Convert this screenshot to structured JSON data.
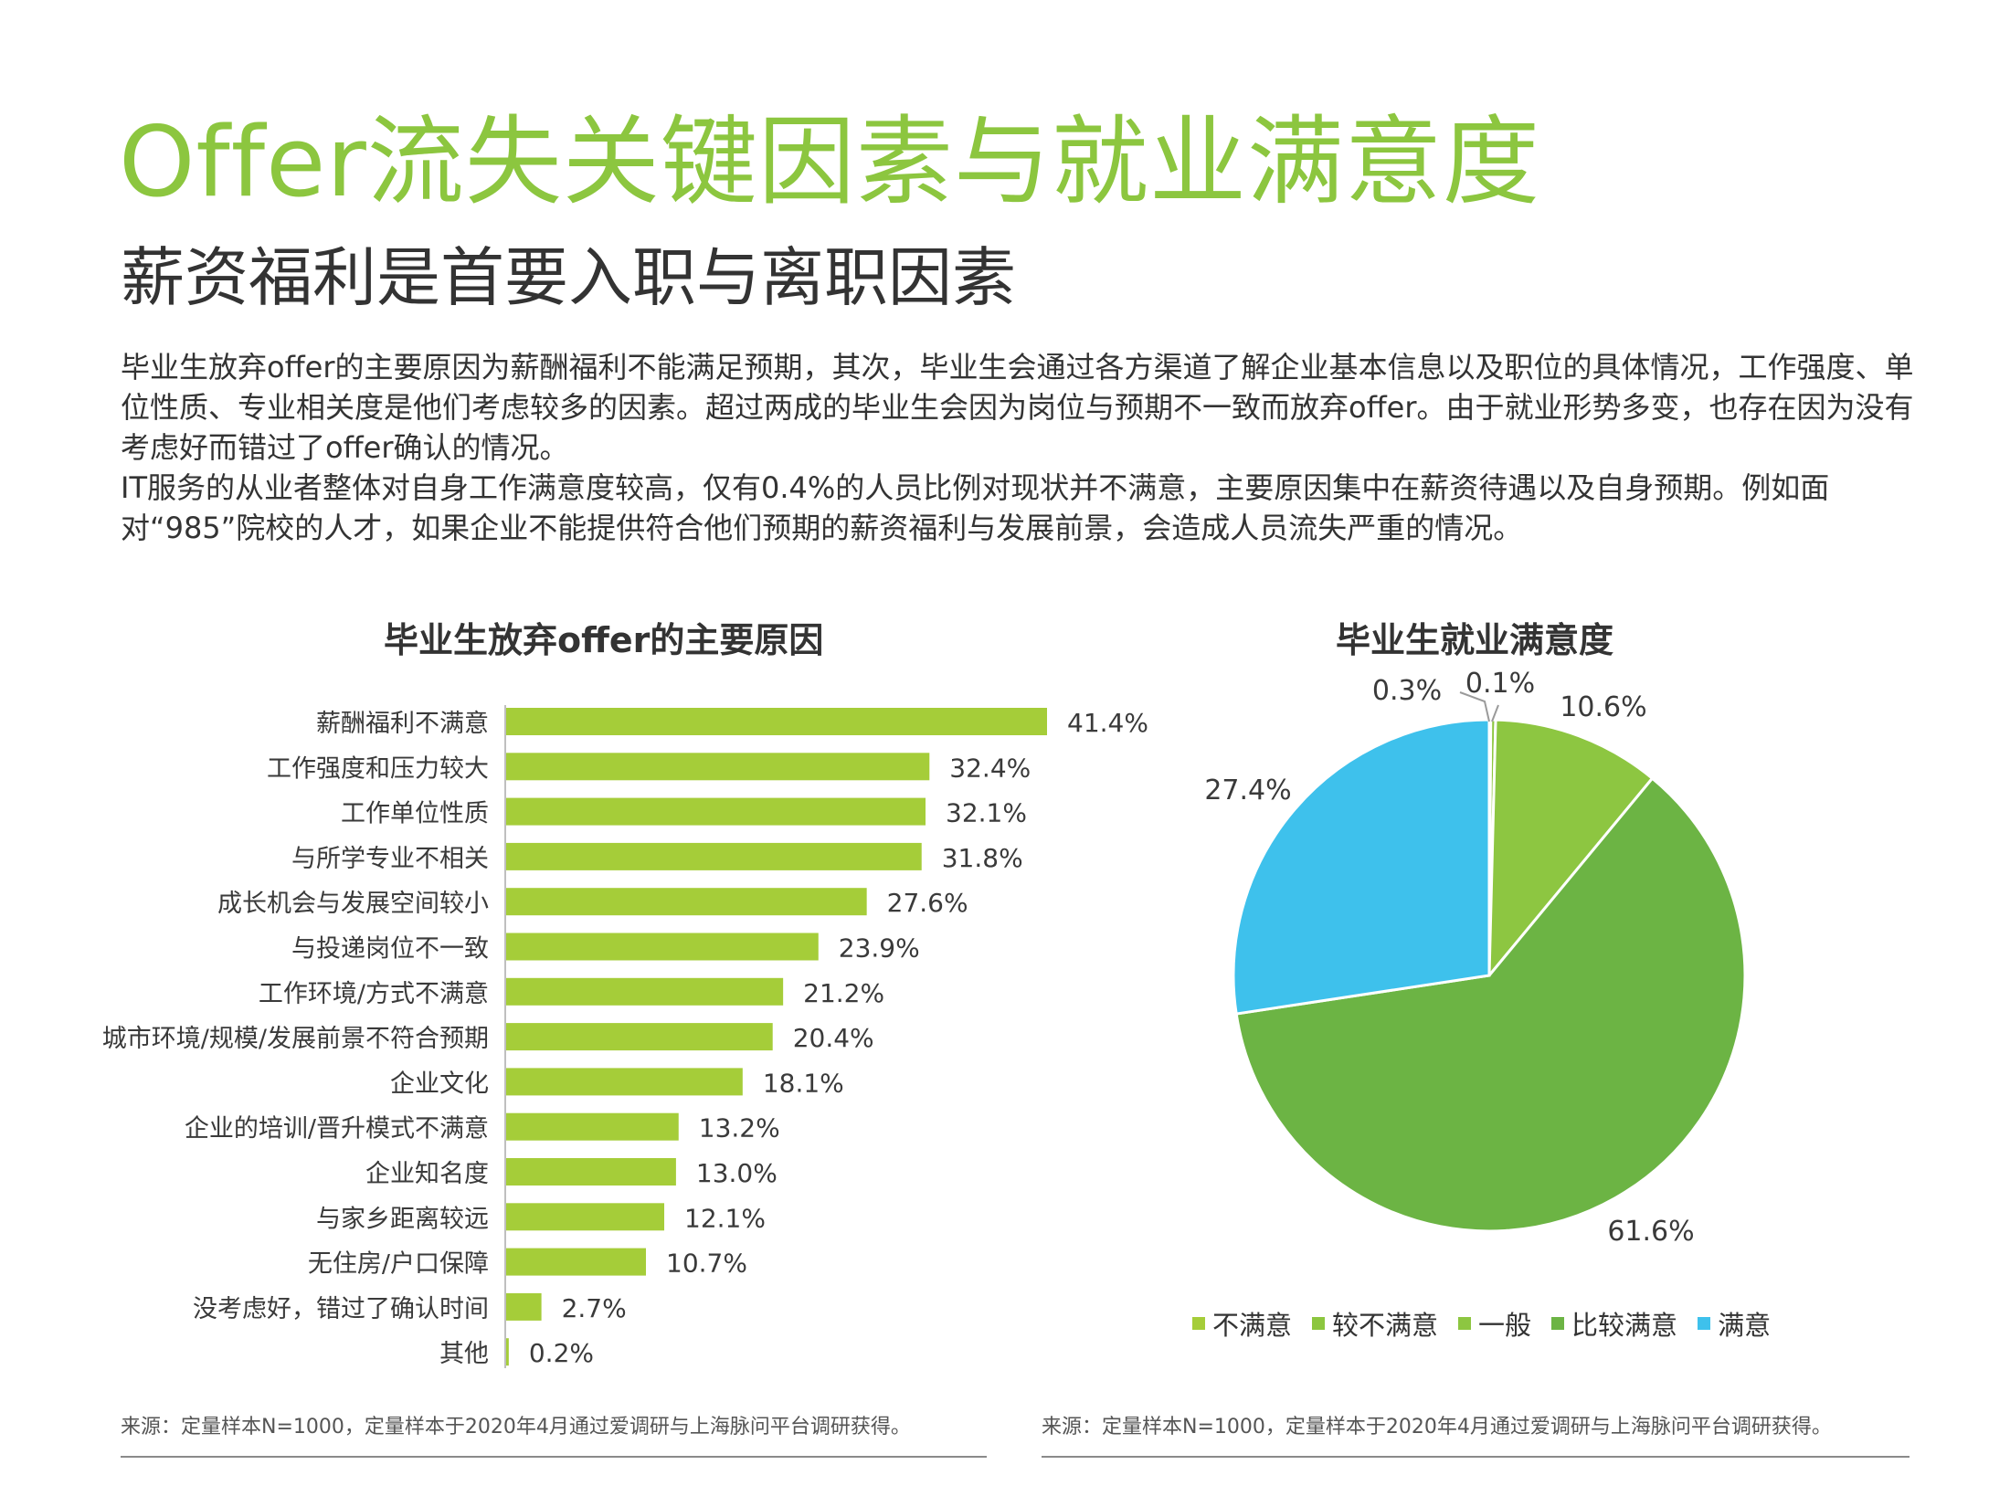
{
  "header": {
    "title": "Offer流失关键因素与就业满意度",
    "subtitle": "薪资福利是首要入职与离职因素"
  },
  "body": {
    "paragraphs": [
      "毕业生放弃offer的主要原因为薪酬福利不能满足预期，其次，毕业生会通过各方渠道了解企业基本信息以及职位的具体情况，工作强度、单位性质、专业相关度是他们考虑较多的因素。超过两成的毕业生会因为岗位与预期不一致而放弃offer。由于就业形势多变，也存在因为没有考虑好而错过了offer确认的情况。",
      "IT服务的从业者整体对自身工作满意度较高，仅有0.4%的人员比例对现状并不满意，主要原因集中在薪资待遇以及自身预期。例如面对“985”院校的人才，如果企业不能提供符合他们预期的薪资福利与发展前景，会造成人员流失严重的情况。"
    ]
  },
  "chart_data": [
    {
      "type": "bar",
      "orientation": "horizontal",
      "title": "毕业生放弃offer的主要原因",
      "categories": [
        "薪酬福利不满意",
        "工作强度和压力较大",
        "工作单位性质",
        "与所学专业不相关",
        "成长机会与发展空间较小",
        "与投递岗位不一致",
        "工作环境/方式不满意",
        "城市环境/规模/发展前景不符合预期",
        "企业文化",
        "企业的培训/晋升模式不满意",
        "企业知名度",
        "与家乡距离较远",
        "无住房/户口保障",
        "没考虑好，错过了确认时间",
        "其他"
      ],
      "values": [
        41.4,
        32.4,
        32.1,
        31.8,
        27.6,
        23.9,
        21.2,
        20.4,
        18.1,
        13.2,
        13.0,
        12.1,
        10.7,
        2.7,
        0.2
      ],
      "labels": [
        "41.4%",
        "32.4%",
        "32.1%",
        "31.8%",
        "27.6%",
        "23.9%",
        "21.2%",
        "20.4%",
        "18.1%",
        "13.2%",
        "13.0%",
        "12.1%",
        "10.7%",
        "2.7%",
        "0.2%"
      ],
      "unit": "%",
      "color": "#a5cd39"
    },
    {
      "type": "pie",
      "title": "毕业生就业满意度",
      "slices": [
        {
          "name": "不满意",
          "value": 0.1,
          "label": "0.1%",
          "color": "#a5cd39"
        },
        {
          "name": "较不满意",
          "value": 0.3,
          "label": "0.3%",
          "color": "#8cc63f"
        },
        {
          "name": "一般",
          "value": 10.6,
          "label": "10.6%",
          "color": "#8dc641"
        },
        {
          "name": "比较满意",
          "value": 61.6,
          "label": "61.6%",
          "color": "#6cb444"
        },
        {
          "name": "满意",
          "value": 27.4,
          "label": "27.4%",
          "color": "#3ec1ec"
        }
      ],
      "legend_position": "bottom"
    }
  ],
  "source": {
    "left": "来源：定量样本N=1000，定量样本于2020年4月通过爱调研与上海脉问平台调研获得。",
    "right": "来源：定量样本N=1000，定量样本于2020年4月通过爱调研与上海脉问平台调研获得。"
  }
}
